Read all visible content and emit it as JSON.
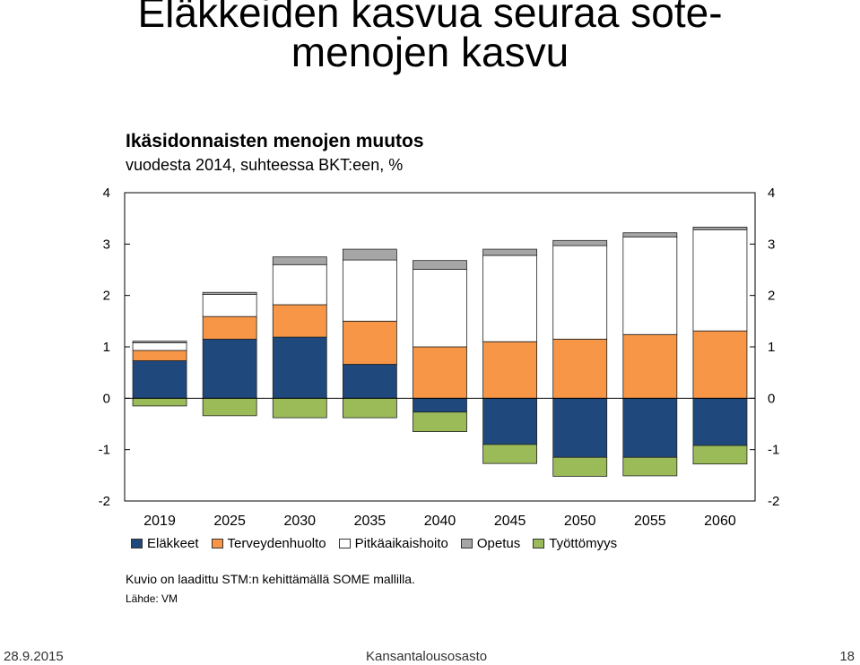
{
  "slide": {
    "title_line1": "Eläkkeiden kasvua seuraa sote-",
    "title_line2": "menojen kasvu"
  },
  "footer": {
    "date": "28.9.2015",
    "organization": "Kansantalousosasto",
    "page_number": "18"
  },
  "chart_data": {
    "type": "bar",
    "stacked": true,
    "title": "Ikäsidonnaisten menojen muutos",
    "subtitle": "vuodesta 2014, suhteessa BKT:een, %",
    "categories": [
      "2019",
      "2025",
      "2030",
      "2035",
      "2040",
      "2045",
      "2050",
      "2055",
      "2060"
    ],
    "series": [
      {
        "name": "Eläkkeet",
        "color": "#1f497d",
        "values": [
          0.73,
          1.15,
          1.19,
          0.66,
          -0.27,
          -0.9,
          -1.15,
          -1.15,
          -0.92
        ]
      },
      {
        "name": "Terveydenhuolto",
        "color": "#f79646",
        "values": [
          0.2,
          0.44,
          0.63,
          0.84,
          1.0,
          1.1,
          1.15,
          1.24,
          1.31
        ]
      },
      {
        "name": "Pitkäaikaishoito",
        "color": "#ffffff",
        "values": [
          0.15,
          0.43,
          0.78,
          1.19,
          1.51,
          1.68,
          1.82,
          1.9,
          1.97
        ]
      },
      {
        "name": "Opetus",
        "color": "#a6a6a6",
        "values": [
          0.03,
          0.04,
          0.15,
          0.21,
          0.17,
          0.12,
          0.1,
          0.08,
          0.05
        ]
      },
      {
        "name": "Työttömyys",
        "color": "#9bbb59",
        "values": [
          -0.15,
          -0.34,
          -0.38,
          -0.38,
          -0.38,
          -0.37,
          -0.37,
          -0.36,
          -0.36
        ]
      }
    ],
    "y_ticks": [
      "-2",
      "-1",
      "0",
      "1",
      "2",
      "3",
      "4"
    ],
    "ylim": [
      -2,
      4
    ],
    "note": "Kuvio on laadittu STM:n kehittämällä SOME mallilla.",
    "source": "Lähde: VM"
  }
}
